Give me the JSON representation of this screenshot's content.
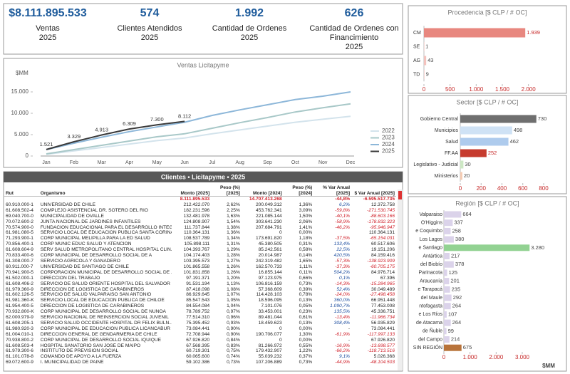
{
  "kpis": [
    {
      "value": "$8.111.895.533",
      "label": "Ventas",
      "year": "2025"
    },
    {
      "value": "574",
      "label": "Clientes Atendidos",
      "year": "2025"
    },
    {
      "value": "1.992",
      "label": "Cantidad de Ordenes",
      "year": "2025"
    },
    {
      "value": "626",
      "label": "Cantidad de Ordenes con Financimiento",
      "year": "2025"
    }
  ],
  "chart_data": [
    {
      "type": "line",
      "title": "Ventas Licitapyme",
      "ylabel": "$MM",
      "categories": [
        "Jan",
        "Feb",
        "Mar",
        "Apr",
        "May",
        "Jun",
        "Jul",
        "Aug",
        "Sep",
        "Oct",
        "Nov",
        "Dec"
      ],
      "series": [
        {
          "name": "2022",
          "color": "#d3e3ec",
          "values": [
            400,
            1200,
            2000,
            2800,
            3600,
            4200,
            5200,
            6100,
            7000,
            7900,
            8600,
            9300
          ]
        },
        {
          "name": "2023",
          "color": "#a8c8c8",
          "values": [
            500,
            1500,
            2500,
            3500,
            4500,
            5200,
            6500,
            7800,
            9000,
            10300,
            11300,
            12200
          ]
        },
        {
          "name": "2024",
          "color": "#8db7d9",
          "values": [
            1500,
            3000,
            4400,
            5700,
            6800,
            7900,
            9500,
            10800,
            12000,
            13200,
            14000,
            15000
          ]
        },
        {
          "name": "2025",
          "color": "#3a3a3a",
          "values": [
            1521,
            3329,
            4913,
            6309,
            7300,
            8112,
            null,
            null,
            null,
            null,
            null,
            null
          ],
          "value_labels": [
            "1.521",
            "3.329",
            "4.913",
            "6.309",
            "7.300",
            "8.112",
            null,
            null,
            null,
            null,
            null,
            null
          ]
        }
      ],
      "ylim": [
        0,
        16500
      ],
      "yticks": [
        0,
        {
          "value": 5000,
          "label": "5.000"
        },
        {
          "value": 10000,
          "label": "10.000"
        },
        {
          "value": 15000,
          "label": "15.000"
        }
      ],
      "legend": "bottom-right"
    },
    {
      "type": "bar",
      "horizontal": true,
      "title": "Procedencia  [$ CLP / # OC]",
      "categories": [
        "CM",
        "SE",
        "AG",
        "TD"
      ],
      "values": [
        1939,
        1,
        43,
        9
      ],
      "value_labels": [
        "1.939",
        "1",
        "43",
        "9"
      ],
      "colors": [
        "#e8877f",
        "#f3c2bd",
        "#f3c2bd",
        "#f3c2bd"
      ],
      "xlim": [
        0,
        2100
      ],
      "xticks": [
        0,
        500,
        {
          "value": 1000,
          "label": "1.000"
        },
        {
          "value": 1500,
          "label": "1.500"
        },
        {
          "value": 2000,
          "label": "2.000"
        }
      ]
    },
    {
      "type": "bar",
      "horizontal": true,
      "title": "Sector  [$ CLP / # OC]",
      "categories": [
        "Gobierno Central",
        "Municipios",
        "Salud",
        "FF.AA",
        "Legislativo - Judicial",
        "Ministerios"
      ],
      "values": [
        730,
        498,
        462,
        252,
        30,
        20
      ],
      "value_labels": [
        "730",
        "498",
        "462",
        "252",
        "30",
        "20"
      ],
      "colors": [
        "#6f6f6f",
        "#cfe2f5",
        "#aecbed",
        "#c63b2e",
        "#cde8c4",
        "#f5cbb2"
      ],
      "xlim": [
        0,
        800
      ],
      "xticks": [
        0,
        200,
        400,
        600,
        800
      ]
    },
    {
      "type": "bar",
      "horizontal": true,
      "title": "Región  [$ CLP / # OC]",
      "xlabel": "$MM",
      "categories": [
        "Valparaiso",
        "O'Higgins",
        "e Coquimbo",
        "Los Lagos",
        "e Santiago",
        "Antártica",
        "del Biobío",
        "Parinacota",
        "Araucanía",
        "e Tarapacá",
        "del Maule",
        "ntofagasta",
        "e Los Ríos",
        "de Atacama",
        "de Ñuble",
        "del Campo",
        "SIN REGIÓN"
      ],
      "values": [
        664,
        337,
        258,
        380,
        3280,
        217,
        378,
        125,
        201,
        235,
        292,
        264,
        107,
        264,
        99,
        214,
        675
      ],
      "value_labels": [
        "664",
        "337",
        "258",
        "380",
        "3.280",
        "217",
        "378",
        "125",
        "201",
        "235",
        "292",
        "264",
        "107",
        "264",
        "99",
        "214",
        "675"
      ],
      "colors": [
        "#dbd3ea",
        "#dbd3ea",
        "#dbd3ea",
        "#dbd3ea",
        "#92d292",
        "#dbd3ea",
        "#dbd3ea",
        "#dbd3ea",
        "#dbd3ea",
        "#dbd3ea",
        "#dbd3ea",
        "#dbd3ea",
        "#dbd3ea",
        "#dbd3ea",
        "#dbd3ea",
        "#dbd3ea",
        "#b8733a"
      ],
      "xlim": [
        0,
        3300
      ],
      "xticks": [
        0,
        {
          "value": 1000,
          "label": "1.000"
        },
        {
          "value": 2000,
          "label": "2.000"
        },
        {
          "value": 3000,
          "label": "3.000"
        }
      ]
    }
  ],
  "table": {
    "title": "Clientes • Licitapyme • 2025",
    "columns": [
      "Rut",
      "Organismo",
      "Monto [2025]",
      "Peso (%) [2025]",
      "Monto [2024]",
      "Peso (%) [2024]",
      "% Var Anual [2025]",
      "$ Var Anual [2025]"
    ],
    "total": [
      null,
      null,
      "8.111.895.533",
      null,
      "14.707.413.268",
      null,
      "-44,8%",
      "-6.595.517.735"
    ],
    "rows": [
      [
        "60.910.000-1",
        "UNIVERSIDAD DE CHILE",
        "212.422.070",
        "2,62%",
        "200.049.312",
        "1,36%",
        "6,2%",
        "12.372.758"
      ],
      [
        "61.608.502-4",
        "COMPLEJO ASISTENCIAL DR. SOTERO DEL RIO",
        "182.231.596",
        "2,25%",
        "453.762.341",
        "3,09%",
        "-59,8%",
        "-271.530.745"
      ],
      [
        "69.040.700-0",
        "MUNICIPALIDAD DE OVALLE",
        "132.481.978",
        "1,63%",
        "221.085.144",
        "1,50%",
        "-40,1%",
        "-88.603.166"
      ],
      [
        "70.072.600-2",
        "JUNTA NACIONAL DE JARDINES INFANTILES",
        "124.808.907",
        "1,54%",
        "303.641.230",
        "2,06%",
        "-58,9%",
        "-178.832.323"
      ],
      [
        "70.574.900-0",
        "FUNDACION EDUCACIONAL PARA EL DESARROLLO INTEG...",
        "111.737.844",
        "1,38%",
        "207.684.791",
        "1,41%",
        "-46,2%",
        "-95.946.947"
      ],
      [
        "61.981.080-5",
        "SERVICIO LOCAL DE EDUCACIÓN PÚBLICA SANTA CORINA",
        "110.364.131",
        "1,36%",
        "0",
        "0,00%",
        null,
        "110.364.131"
      ],
      [
        "71.293.900-1",
        "CORP MUNICIPAL MELIPILLA PARA LA ED SALUD",
        "108.537.789",
        "1,34%",
        "173.691.820",
        "1,18%",
        "-37,5%",
        "-65.154.031"
      ],
      [
        "70.856.400-1",
        "CORP MUNIC EDUC SALUD Y ATENCION",
        "105.898.111",
        "1,31%",
        "45.380.505",
        "0,31%",
        "133,4%",
        "60.517.606"
      ],
      [
        "61.608.604-9",
        "SERV SALUD METROPOLITANO CENTRAL HOSPITAL CLIN...",
        "104.393.767",
        "1,29%",
        "85.242.561",
        "0,58%",
        "22,5%",
        "19.151.206"
      ],
      [
        "70.833.400-6",
        "CORP MUNICIPAL DE DESARROLLO SOCIAL DE A",
        "104.174.403",
        "1,28%",
        "20.014.987",
        "0,14%",
        "420,5%",
        "84.159.416"
      ],
      [
        "61.308.000-7",
        "SERVICIO AGRICOLA Y GANADERO",
        "103.395.573",
        "1,27%",
        "242.319.482",
        "1,65%",
        "-57,3%",
        "-138.923.909"
      ],
      [
        "60.911.000-7",
        "UNIVERSIDAD DE SANTIAGO DE CHILE",
        "101.865.558",
        "1,26%",
        "162.570.733",
        "1,11%",
        "-37,3%",
        "-60.705.175"
      ],
      [
        "70.941.900-5",
        "CORPORACIÓN MUNICIPAL DE DESARROLLO SOCIAL DE ...",
        "101.831.858",
        "1,26%",
        "16.855.144",
        "0,11%",
        "504,2%",
        "84.976.714"
      ],
      [
        "61.502.000-1",
        "DIRECCION DEL TRABAJO",
        "97.191.371",
        "1,20%",
        "97.123.975",
        "0,66%",
        "0,1%",
        "67.396"
      ],
      [
        "61.608.406-2",
        "SERVICIO DE SALUD ORIENTE HOSPITAL DEL SALVADOR",
        "91.531.194",
        "1,13%",
        "106.816.159",
        "0,73%",
        "-14,3%",
        "-15.284.965"
      ],
      [
        "61.979.360-9",
        "DIRECCION DE LOGISTICA DE CARABINEROS",
        "87.418.098",
        "1,08%",
        "57.368.609",
        "0,39%",
        "52,4%",
        "30.049.489"
      ],
      [
        "61.602.126-5",
        "SERVICIO DE SALUD VALPARAISO SAN ANTONIO",
        "86.929.645",
        "1,07%",
        "114.428.103",
        "0,78%",
        "-24,0%",
        "-27.498.458"
      ],
      [
        "61.981.360-K",
        "SERVICIO LOCAL DE EDUCACIÓN PÚBLICA DE CHILOÉ",
        "85.547.543",
        "1,05%",
        "18.596.095",
        "0,13%",
        "360,0%",
        "66.951.448"
      ],
      [
        "61.954.400-5",
        "DIRECCION DE LOGISTICA DE CARABINEROS",
        "84.554.084",
        "1,04%",
        "7.101.076",
        "0,05%",
        "1.090,7%",
        "77.453.008"
      ],
      [
        "70.932.800-K",
        "CORP MUNICIPAL DE DESARROLLO SOCIAL DE NUNOA",
        "78.789.752",
        "0,97%",
        "33.453.001",
        "0,23%",
        "135,5%",
        "45.336.751"
      ],
      [
        "62.000.979-9",
        "SERVICIO NACIONAL DE REINSERCION SOCIAL JUVENIL",
        "77.514.310",
        "0,96%",
        "89.481.044",
        "0,61%",
        "-13,4%",
        "-11.966.734"
      ],
      [
        "61.608.205-1",
        "SERVICIO SALUD OCCIDENTE HOSPITAL DR FELIX BULN...",
        "75.395.452",
        "0,93%",
        "18.459.623",
        "0,13%",
        "308,4%",
        "56.935.829"
      ],
      [
        "61.980.920-3",
        "CORP MUNICIPAL DE EDUCACIÓN PÚBLICA LICANCABUR",
        "73.084.441",
        "0,90%",
        "0",
        "0,00%",
        "-",
        "73.084.441"
      ],
      [
        "61.004.010-1",
        "DIRECCION GENERAL DE GENDARMERIA DE CHILE",
        "72.708.944",
        "0,90%",
        "190.706.077",
        "1,30%",
        "-61,9%",
        "-117.997.133"
      ],
      [
        "70.938.800-2",
        "CORP MUNICIPAL DE DESARROLLO SOCIAL IQUIQUE",
        "67.926.820",
        "0,84%",
        "0",
        "0,00%",
        "-",
        "67.926.820"
      ],
      [
        "61.608.503-4",
        "HOSPITAL SANATORIO SAN JOSÉ DE MAIPO",
        "67.568.395",
        "0,83%",
        "81.266.972",
        "0,55%",
        "-16,9%",
        "-13.698.577"
      ],
      [
        "61.979.300-6",
        "INSTITUTO DE PREVISION SOCIAL",
        "60.719.301",
        "0,75%",
        "179.432.907",
        "1,22%",
        "-66,2%",
        "-118.713.516"
      ],
      [
        "61.101.078-8",
        "COMANDO DE APOYO A LA FUERZA",
        "60.065.600",
        "0,74%",
        "55.039.232",
        "0,37%",
        "9,1%",
        "5.026.368"
      ],
      [
        "69.072.600-9",
        "I. MUNICIPALIDAD DE PAINE",
        "59.102.386",
        "0,73%",
        "107.206.889",
        "0,73%",
        "-44,9%",
        "-48.104.503"
      ]
    ]
  }
}
